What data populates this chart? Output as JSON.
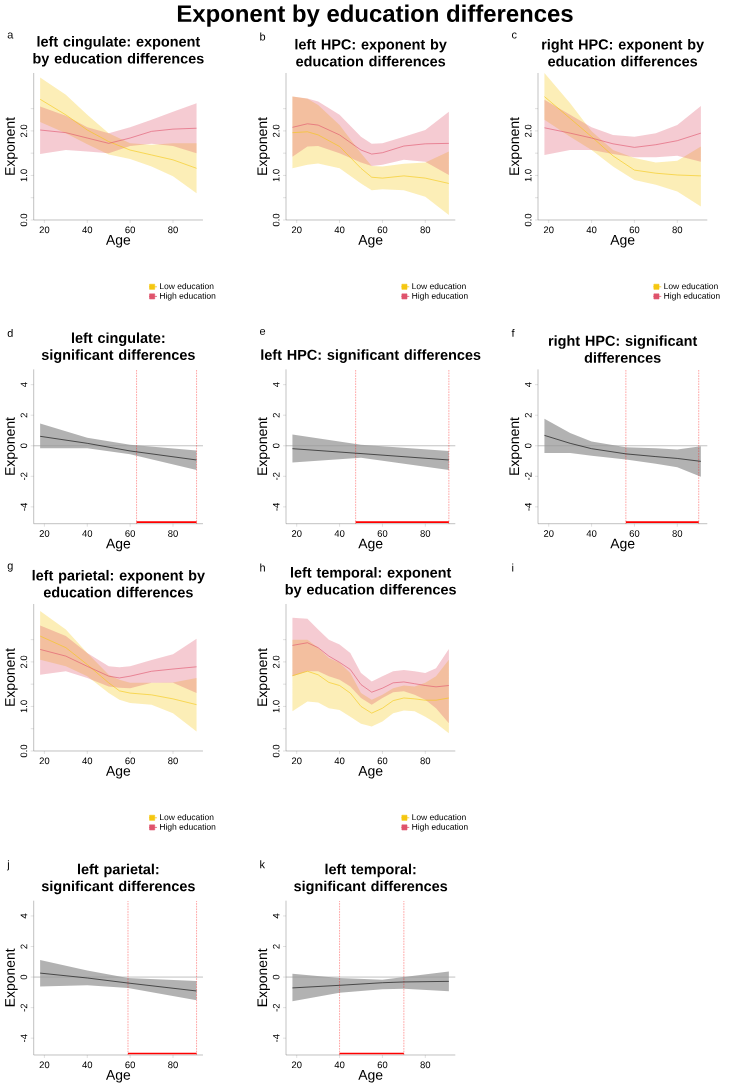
{
  "chart_data": [
    {
      "type": "other",
      "title": "Exponent by education differences"
    },
    {
      "type": "line",
      "title": "left cingulate: exponent by education differences",
      "xlabel": "Age",
      "ylabel": "Exponent",
      "annotations": [
        "a"
      ],
      "legend": "bottom right",
      "xlim": [
        15,
        94
      ],
      "ylim": [
        0,
        3.3
      ],
      "xticks": [
        20,
        40,
        60,
        80
      ],
      "yticks": [
        {
          "value": 0,
          "label": "0.0"
        },
        {
          "value": 0.5,
          "label": null
        },
        {
          "value": 1,
          "label": "1.0"
        },
        {
          "value": 1.5,
          "label": null
        },
        {
          "value": 2,
          "label": "2.0"
        },
        {
          "value": 2.5,
          "label": null
        }
      ],
      "x": [
        18,
        30,
        40,
        50,
        60,
        70,
        80,
        91
      ],
      "series": [
        {
          "name": "Low education",
          "color": "#f5c710",
          "values": [
            2.71,
            2.36,
            2.02,
            1.76,
            1.57,
            1.46,
            1.35,
            1.16
          ],
          "lower": [
            2.2,
            1.95,
            1.7,
            1.47,
            1.37,
            1.2,
            0.98,
            0.6
          ],
          "upper": [
            3.2,
            2.81,
            2.36,
            1.95,
            1.72,
            1.69,
            1.72,
            1.72
          ]
        },
        {
          "name": "High education",
          "color": "#df536b",
          "values": [
            2.02,
            1.96,
            1.84,
            1.72,
            1.84,
            1.99,
            2.04,
            2.06
          ],
          "lower": [
            1.48,
            1.57,
            1.54,
            1.5,
            1.66,
            1.71,
            1.66,
            1.5
          ],
          "upper": [
            2.55,
            2.34,
            2.08,
            1.95,
            2.08,
            2.25,
            2.43,
            2.62
          ]
        }
      ]
    },
    {
      "type": "line",
      "title": "left HPC: exponent by education differences",
      "xlabel": "Age",
      "ylabel": "Exponent",
      "annotations": [
        "b"
      ],
      "legend": "bottom right",
      "xlim": [
        15,
        94
      ],
      "ylim": [
        0,
        3.3
      ],
      "xticks": [
        20,
        40,
        60,
        80
      ],
      "yticks": [
        {
          "value": 0,
          "label": "0.0"
        },
        {
          "value": 0.5,
          "label": null
        },
        {
          "value": 1,
          "label": "1.0"
        },
        {
          "value": 1.5,
          "label": null
        },
        {
          "value": 2,
          "label": "2.0"
        },
        {
          "value": 2.5,
          "label": null
        }
      ],
      "x": [
        18,
        25,
        30,
        40,
        50,
        55,
        60,
        70,
        80,
        91
      ],
      "series": [
        {
          "name": "Low education",
          "color": "#f5c710",
          "values": [
            1.96,
            1.98,
            1.91,
            1.65,
            1.16,
            0.96,
            0.94,
            0.99,
            0.94,
            0.82
          ],
          "lower": [
            1.16,
            1.24,
            1.27,
            1.16,
            0.82,
            0.67,
            0.69,
            0.67,
            0.52,
            0.11
          ],
          "upper": [
            2.77,
            2.72,
            2.58,
            2.13,
            1.5,
            1.21,
            1.2,
            1.26,
            1.29,
            1.54
          ]
        },
        {
          "name": "High education",
          "color": "#df536b",
          "values": [
            2.08,
            2.16,
            2.13,
            1.91,
            1.57,
            1.48,
            1.51,
            1.66,
            1.71,
            1.72
          ],
          "lower": [
            1.42,
            1.65,
            1.66,
            1.5,
            1.29,
            1.21,
            1.24,
            1.35,
            1.31,
            1.01
          ],
          "upper": [
            2.77,
            2.73,
            2.66,
            2.36,
            1.87,
            1.71,
            1.72,
            1.87,
            2.02,
            2.43
          ]
        }
      ]
    },
    {
      "type": "line",
      "title": "right HPC: exponent by education differences",
      "xlabel": "Age",
      "ylabel": "Exponent",
      "annotations": [
        "c"
      ],
      "legend": "bottom right",
      "xlim": [
        15,
        94
      ],
      "ylim": [
        0,
        3.3
      ],
      "xticks": [
        20,
        40,
        60,
        80
      ],
      "yticks": [
        {
          "value": 0,
          "label": "0.0"
        },
        {
          "value": 0.5,
          "label": null
        },
        {
          "value": 1,
          "label": "1.0"
        },
        {
          "value": 1.5,
          "label": null
        },
        {
          "value": 2,
          "label": "2.0"
        },
        {
          "value": 2.5,
          "label": null
        }
      ],
      "x": [
        18,
        30,
        40,
        50,
        60,
        70,
        80,
        91
      ],
      "series": [
        {
          "name": "Low education",
          "color": "#f5c710",
          "values": [
            2.77,
            2.28,
            1.87,
            1.44,
            1.12,
            1.05,
            1.01,
            0.99
          ],
          "lower": [
            2.25,
            1.87,
            1.57,
            1.2,
            0.9,
            0.79,
            0.64,
            0.3
          ],
          "upper": [
            3.3,
            2.62,
            1.99,
            1.57,
            1.39,
            1.29,
            1.33,
            1.65
          ]
        },
        {
          "name": "High education",
          "color": "#df536b",
          "values": [
            2.07,
            1.95,
            1.84,
            1.71,
            1.63,
            1.69,
            1.78,
            1.95
          ],
          "lower": [
            1.46,
            1.57,
            1.57,
            1.48,
            1.41,
            1.41,
            1.44,
            1.31
          ],
          "upper": [
            2.7,
            2.36,
            2.08,
            1.91,
            1.87,
            1.95,
            2.13,
            2.56
          ]
        }
      ]
    },
    {
      "type": "line",
      "title": "left cingulate: significant differences",
      "xlabel": "Age",
      "ylabel": "Exponent",
      "annotations": [
        "d"
      ],
      "xlim": [
        15,
        94
      ],
      "ylim": [
        -5.1,
        5
      ],
      "xticks": [
        20,
        40,
        60,
        80
      ],
      "yticks": [
        -4,
        -2,
        0,
        2,
        4
      ],
      "x": [
        18,
        40,
        60,
        91
      ],
      "series": [
        {
          "color": "#000000",
          "values": [
            0.62,
            0.16,
            -0.34,
            -0.93
          ],
          "lower": [
            -0.16,
            -0.16,
            -0.56,
            -1.58
          ],
          "upper": [
            1.46,
            0.53,
            0.06,
            -0.31
          ]
        },
        {
          "type": "line",
          "color": "#ff0000",
          "x": [
            63,
            91
          ],
          "values": [
            -5,
            -5
          ]
        }
      ],
      "ref_lines": [
        {
          "axis": "y",
          "value": 0,
          "color": "#999999"
        },
        {
          "axis": "x",
          "value": 63,
          "color": "#ff0000",
          "line_style": "dotted"
        },
        {
          "axis": "x",
          "value": 91,
          "color": "#ff0000",
          "line_style": "dotted"
        }
      ]
    },
    {
      "type": "line",
      "title": "left HPC: significant differences",
      "xlabel": "Age",
      "ylabel": "Exponent",
      "annotations": [
        "e"
      ],
      "xlim": [
        15,
        94
      ],
      "ylim": [
        -5.1,
        5
      ],
      "xticks": [
        20,
        40,
        60,
        80
      ],
      "yticks": [
        -4,
        -2,
        0,
        2,
        4
      ],
      "x": [
        18,
        50,
        91
      ],
      "series": [
        {
          "color": "#000000",
          "values": [
            -0.19,
            -0.51,
            -0.93
          ],
          "lower": [
            -1.09,
            -0.78,
            -1.58
          ],
          "upper": [
            0.74,
            0.06,
            -0.34
          ]
        },
        {
          "type": "line",
          "color": "#ff0000",
          "x": [
            47.5,
            91
          ],
          "values": [
            -5,
            -5
          ]
        }
      ],
      "ref_lines": [
        {
          "axis": "y",
          "value": 0,
          "color": "#999999"
        },
        {
          "axis": "x",
          "value": 47.5,
          "color": "#ff0000",
          "line_style": "dotted"
        },
        {
          "axis": "x",
          "value": 91,
          "color": "#ff0000",
          "line_style": "dotted"
        }
      ]
    },
    {
      "type": "line",
      "title": "right HPC: significant differences",
      "xlabel": "Age",
      "ylabel": "Exponent",
      "annotations": [
        "f"
      ],
      "xlim": [
        15,
        94
      ],
      "ylim": [
        -5.1,
        5
      ],
      "xticks": [
        20,
        40,
        60,
        80
      ],
      "yticks": [
        -4,
        -2,
        0,
        2,
        4
      ],
      "x": [
        18,
        30,
        40,
        56,
        70,
        80,
        91
      ],
      "series": [
        {
          "color": "#000000",
          "values": [
            0.68,
            0.16,
            -0.19,
            -0.53,
            -0.71,
            -0.83,
            -1.02
          ],
          "lower": [
            -0.47,
            -0.47,
            -0.65,
            -0.9,
            -1.18,
            -1.4,
            -2.02
          ],
          "upper": [
            1.77,
            0.84,
            0.28,
            -0.09,
            -0.16,
            -0.25,
            -0.03
          ]
        },
        {
          "type": "line",
          "color": "#ff0000",
          "x": [
            56,
            90
          ],
          "values": [
            -5,
            -5
          ]
        }
      ],
      "ref_lines": [
        {
          "axis": "y",
          "value": 0,
          "color": "#999999"
        },
        {
          "axis": "x",
          "value": 56,
          "color": "#ff0000",
          "line_style": "dotted"
        },
        {
          "axis": "x",
          "value": 90,
          "color": "#ff0000",
          "line_style": "dotted"
        }
      ]
    },
    {
      "type": "line",
      "title": "left parietal: exponent by education differences",
      "xlabel": "Age",
      "ylabel": "Exponent",
      "annotations": [
        "g"
      ],
      "legend": "bottom right",
      "xlim": [
        15,
        94
      ],
      "ylim": [
        0,
        3.3
      ],
      "xticks": [
        20,
        40,
        60,
        80
      ],
      "yticks": [
        {
          "value": 0,
          "label": "0.0"
        },
        {
          "value": 0.5,
          "label": null
        },
        {
          "value": 1,
          "label": "1.0"
        },
        {
          "value": 1.5,
          "label": null
        },
        {
          "value": 2,
          "label": "2.0"
        },
        {
          "value": 2.5,
          "label": null
        }
      ],
      "x": [
        18,
        30,
        40,
        50,
        55,
        60,
        70,
        80,
        91
      ],
      "series": [
        {
          "name": "Low education",
          "color": "#f5c710",
          "values": [
            2.58,
            2.32,
            1.94,
            1.53,
            1.35,
            1.3,
            1.26,
            1.17,
            1.04
          ],
          "lower": [
            2.05,
            1.9,
            1.68,
            1.3,
            1.15,
            1.08,
            1.04,
            0.85,
            0.44
          ],
          "upper": [
            3.14,
            2.73,
            2.2,
            1.71,
            1.6,
            1.53,
            1.53,
            1.54,
            1.64
          ]
        },
        {
          "name": "High education",
          "color": "#df536b",
          "values": [
            2.28,
            2.13,
            1.9,
            1.68,
            1.64,
            1.68,
            1.79,
            1.84,
            1.89
          ],
          "lower": [
            1.71,
            1.79,
            1.64,
            1.45,
            1.42,
            1.41,
            1.53,
            1.53,
            1.3
          ],
          "upper": [
            2.82,
            2.58,
            2.2,
            1.9,
            1.88,
            1.9,
            2.04,
            2.17,
            2.52
          ]
        }
      ]
    },
    {
      "type": "line",
      "title": "left temporal: exponent by education differences",
      "xlabel": "Age",
      "ylabel": "Exponent",
      "annotations": [
        "h"
      ],
      "legend": "bottom right",
      "xlim": [
        15,
        94
      ],
      "ylim": [
        0,
        3.3
      ],
      "xticks": [
        20,
        40,
        60,
        80
      ],
      "yticks": [
        {
          "value": 0,
          "label": "0.0"
        },
        {
          "value": 0.5,
          "label": null
        },
        {
          "value": 1,
          "label": "1.0"
        },
        {
          "value": 1.5,
          "label": null
        },
        {
          "value": 2,
          "label": "2.0"
        },
        {
          "value": 2.5,
          "label": null
        }
      ],
      "x": [
        18,
        25,
        30,
        35,
        40,
        45,
        50,
        55,
        60,
        65,
        70,
        75,
        80,
        85,
        91
      ],
      "series": [
        {
          "name": "Low education",
          "color": "#f5c710",
          "values": [
            1.69,
            1.79,
            1.71,
            1.54,
            1.47,
            1.3,
            1.0,
            0.85,
            0.96,
            1.13,
            1.19,
            1.17,
            1.14,
            1.14,
            1.19
          ],
          "lower": [
            0.89,
            1.11,
            1.09,
            0.96,
            0.92,
            0.77,
            0.61,
            0.55,
            0.66,
            0.85,
            0.91,
            0.89,
            0.77,
            0.62,
            0.4
          ],
          "upper": [
            2.5,
            2.5,
            2.32,
            2.09,
            1.98,
            1.75,
            1.3,
            1.15,
            1.26,
            1.41,
            1.47,
            1.45,
            1.53,
            1.68,
            2.05
          ]
        },
        {
          "name": "High education",
          "color": "#df536b",
          "values": [
            2.37,
            2.43,
            2.32,
            2.13,
            1.99,
            1.83,
            1.49,
            1.32,
            1.41,
            1.53,
            1.55,
            1.51,
            1.47,
            1.44,
            1.47
          ],
          "lower": [
            1.68,
            1.79,
            1.79,
            1.68,
            1.6,
            1.45,
            1.19,
            1.04,
            1.19,
            1.32,
            1.34,
            1.26,
            1.15,
            0.96,
            0.62
          ],
          "upper": [
            2.99,
            2.97,
            2.73,
            2.5,
            2.39,
            2.2,
            1.75,
            1.56,
            1.68,
            1.79,
            1.82,
            1.79,
            1.75,
            1.86,
            2.29
          ]
        }
      ]
    },
    {
      "type": "other",
      "annotations": [
        "i"
      ]
    },
    {
      "type": "line",
      "title": "left parietal: significant differences",
      "xlabel": "Age",
      "ylabel": "Exponent",
      "annotations": [
        "j"
      ],
      "xlim": [
        15,
        94
      ],
      "ylim": [
        -5.1,
        5
      ],
      "xticks": [
        20,
        40,
        60,
        80
      ],
      "yticks": [
        -4,
        -2,
        0,
        2,
        4
      ],
      "x": [
        18,
        40,
        59,
        91
      ],
      "series": [
        {
          "color": "#000000",
          "values": [
            0.26,
            -0.06,
            -0.39,
            -0.91
          ],
          "lower": [
            -0.61,
            -0.54,
            -0.71,
            -1.51
          ],
          "upper": [
            1.12,
            0.43,
            -0.06,
            -0.26
          ]
        },
        {
          "type": "line",
          "color": "#ff0000",
          "x": [
            59,
            91
          ],
          "values": [
            -5,
            -5
          ]
        }
      ],
      "ref_lines": [
        {
          "axis": "y",
          "value": 0,
          "color": "#999999"
        },
        {
          "axis": "x",
          "value": 59,
          "color": "#ff0000",
          "line_style": "dotted"
        },
        {
          "axis": "x",
          "value": 91,
          "color": "#ff0000",
          "line_style": "dotted"
        }
      ]
    },
    {
      "type": "line",
      "title": "left temporal: significant differences",
      "xlabel": "Age",
      "ylabel": "Exponent",
      "annotations": [
        "k"
      ],
      "xlim": [
        15,
        94
      ],
      "ylim": [
        -5.1,
        5
      ],
      "xticks": [
        20,
        40,
        60,
        80
      ],
      "yticks": [
        -4,
        -2,
        0,
        2,
        4
      ],
      "x": [
        18,
        40,
        60,
        70,
        91
      ],
      "series": [
        {
          "color": "#000000",
          "values": [
            -0.71,
            -0.54,
            -0.37,
            -0.32,
            -0.28
          ],
          "lower": [
            -1.58,
            -1.02,
            -0.8,
            -0.76,
            -0.93
          ],
          "upper": [
            0.22,
            -0.06,
            -0.17,
            0,
            0.37
          ]
        },
        {
          "type": "line",
          "color": "#ff0000",
          "x": [
            40,
            70
          ],
          "values": [
            -5,
            -5
          ]
        }
      ],
      "ref_lines": [
        {
          "axis": "y",
          "value": 0,
          "color": "#999999"
        },
        {
          "axis": "x",
          "value": 40,
          "color": "#ff0000",
          "line_style": "dotted"
        },
        {
          "axis": "x",
          "value": 70,
          "color": "#ff0000",
          "line_style": "dotted"
        }
      ]
    }
  ]
}
